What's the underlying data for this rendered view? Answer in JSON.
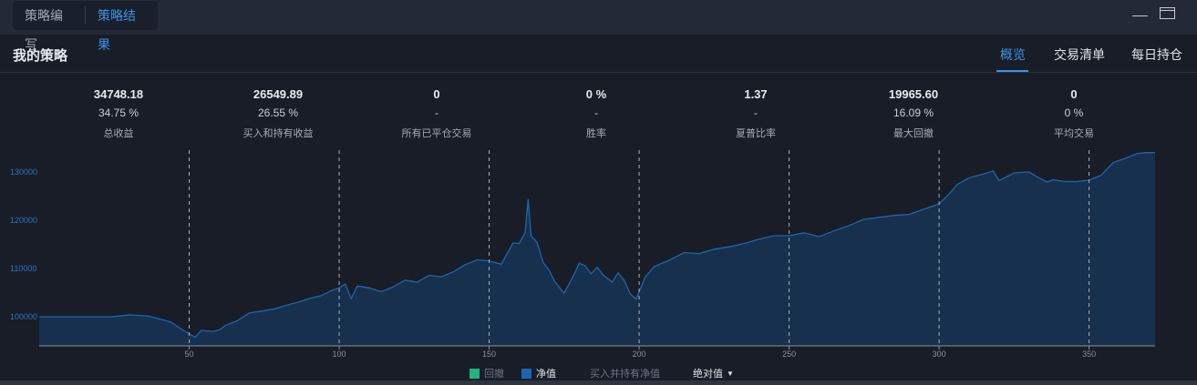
{
  "top_tabs": {
    "editor": "策略编写",
    "results": "策略结果"
  },
  "header": {
    "title": "我的策略",
    "tabs": [
      "概览",
      "交易清单",
      "每日持仓"
    ]
  },
  "stats": [
    {
      "value": "34748.18",
      "pct": "34.75 %",
      "label": "总收益"
    },
    {
      "value": "26549.89",
      "pct": "26.55 %",
      "label": "买入和持有收益"
    },
    {
      "value": "0",
      "pct": "-",
      "label": "所有已平仓交易"
    },
    {
      "value": "0 %",
      "pct": "-",
      "label": "胜率"
    },
    {
      "value": "1.37",
      "pct": "-",
      "label": "夏普比率"
    },
    {
      "value": "19965.60",
      "pct": "16.09 %",
      "label": "最大回撤"
    },
    {
      "value": "0",
      "pct": "0 %",
      "label": "平均交易"
    }
  ],
  "legend": {
    "drawdown": "回撤",
    "net_value": "净值",
    "buy_hold": "买入并持有净值",
    "mode": "绝对值"
  },
  "colors": {
    "accent": "#3b93e6",
    "drawdown": "#1fb47e",
    "net_value": "#1b66b0",
    "area_fill": "#17304e",
    "line": "#1f65ad"
  },
  "chart_data": {
    "type": "area",
    "xlim": [
      0,
      372
    ],
    "ylim": [
      94000,
      134500
    ],
    "x_ticks": [
      50,
      100,
      150,
      200,
      250,
      300,
      350
    ],
    "y_ticks": [
      100000,
      110000,
      120000,
      130000
    ],
    "vertical_dashed_lines": [
      50,
      100,
      150,
      200,
      250,
      300,
      350
    ],
    "series": [
      {
        "name": "净值",
        "points": [
          [
            0,
            100000
          ],
          [
            15,
            100000
          ],
          [
            24,
            100000
          ],
          [
            30,
            100400
          ],
          [
            36,
            100200
          ],
          [
            40,
            99600
          ],
          [
            44,
            98900
          ],
          [
            48,
            97200
          ],
          [
            52,
            95800
          ],
          [
            54,
            97200
          ],
          [
            58,
            97000
          ],
          [
            60,
            97300
          ],
          [
            62,
            98200
          ],
          [
            66,
            99200
          ],
          [
            70,
            100800
          ],
          [
            74,
            101200
          ],
          [
            78,
            101600
          ],
          [
            82,
            102300
          ],
          [
            86,
            103000
          ],
          [
            90,
            103800
          ],
          [
            94,
            104400
          ],
          [
            98,
            105600
          ],
          [
            100,
            106000
          ],
          [
            102,
            106800
          ],
          [
            104,
            103800
          ],
          [
            106,
            106400
          ],
          [
            110,
            106000
          ],
          [
            114,
            105200
          ],
          [
            118,
            106200
          ],
          [
            122,
            107600
          ],
          [
            126,
            107200
          ],
          [
            130,
            108600
          ],
          [
            134,
            108300
          ],
          [
            138,
            109300
          ],
          [
            142,
            110800
          ],
          [
            146,
            111800
          ],
          [
            150,
            111600
          ],
          [
            154,
            110900
          ],
          [
            158,
            115300
          ],
          [
            160,
            115200
          ],
          [
            162,
            117400
          ],
          [
            163,
            124300
          ],
          [
            164,
            116800
          ],
          [
            166,
            115400
          ],
          [
            168,
            111300
          ],
          [
            170,
            109600
          ],
          [
            172,
            107200
          ],
          [
            175,
            104900
          ],
          [
            178,
            108400
          ],
          [
            180,
            111100
          ],
          [
            182,
            110600
          ],
          [
            184,
            108900
          ],
          [
            186,
            110300
          ],
          [
            188,
            108700
          ],
          [
            191,
            107200
          ],
          [
            193,
            109100
          ],
          [
            195,
            107600
          ],
          [
            197,
            104800
          ],
          [
            199,
            103700
          ],
          [
            202,
            108200
          ],
          [
            205,
            110400
          ],
          [
            210,
            111700
          ],
          [
            215,
            113300
          ],
          [
            220,
            113100
          ],
          [
            225,
            114000
          ],
          [
            230,
            114500
          ],
          [
            235,
            115200
          ],
          [
            240,
            116100
          ],
          [
            245,
            116800
          ],
          [
            250,
            116800
          ],
          [
            255,
            117400
          ],
          [
            260,
            116600
          ],
          [
            265,
            117800
          ],
          [
            270,
            118900
          ],
          [
            275,
            120200
          ],
          [
            280,
            120600
          ],
          [
            285,
            121000
          ],
          [
            290,
            121200
          ],
          [
            295,
            122300
          ],
          [
            300,
            123400
          ],
          [
            303,
            125200
          ],
          [
            306,
            127400
          ],
          [
            310,
            128800
          ],
          [
            315,
            129600
          ],
          [
            318,
            130200
          ],
          [
            320,
            128200
          ],
          [
            325,
            129800
          ],
          [
            330,
            130000
          ],
          [
            332,
            129200
          ],
          [
            336,
            127900
          ],
          [
            338,
            128400
          ],
          [
            342,
            128000
          ],
          [
            346,
            128000
          ],
          [
            350,
            128300
          ],
          [
            354,
            129300
          ],
          [
            358,
            131900
          ],
          [
            362,
            132800
          ],
          [
            366,
            133800
          ],
          [
            369,
            134000
          ],
          [
            372,
            134000
          ]
        ]
      }
    ]
  }
}
